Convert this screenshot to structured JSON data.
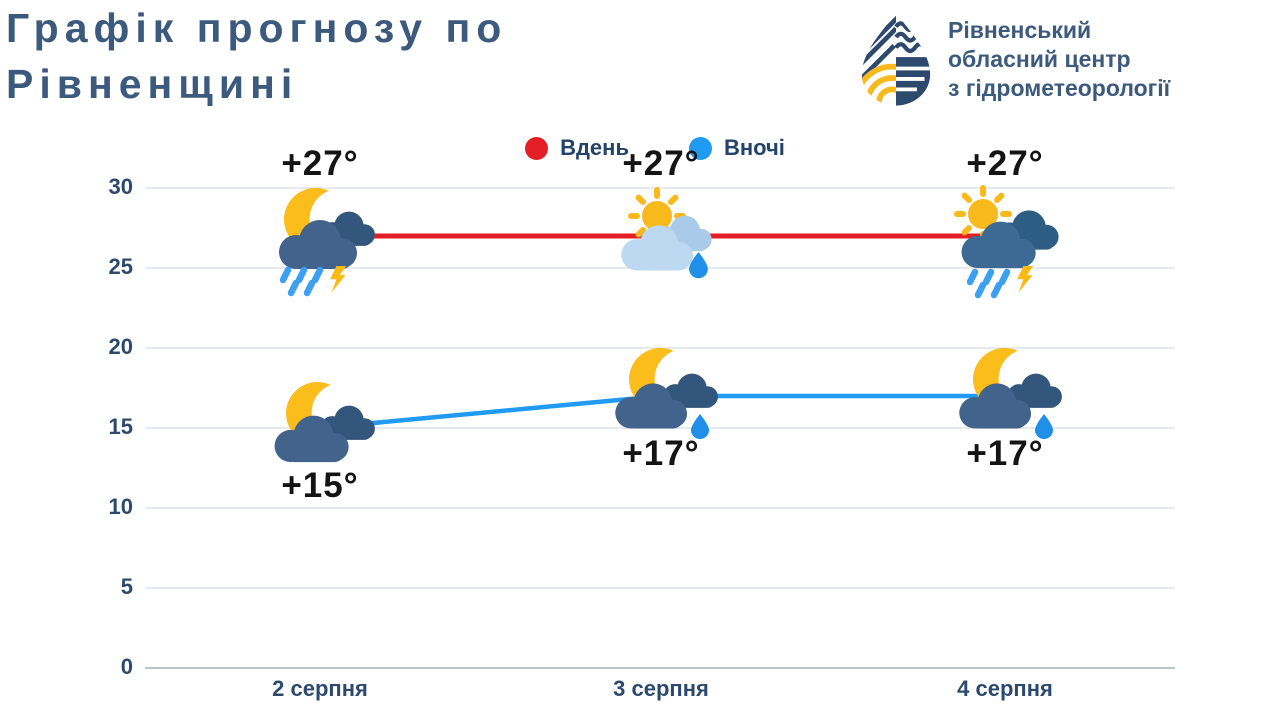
{
  "page": {
    "title_line1": "Графік прогнозу по",
    "title_line2": "Рівненщині"
  },
  "logo": {
    "name_line1": "Рівненський",
    "name_line2": "обласний центр",
    "name_line3": "з гідрометеорології",
    "icon": "water-drop-hydromet-logo",
    "color": "#3c5a7d",
    "accent": "#f8b91c"
  },
  "legend": {
    "day_label": "Вдень",
    "night_label": "Вночі",
    "day_color": "#e41e25",
    "night_color": "#219af2"
  },
  "chart_data": {
    "type": "line",
    "title": "Графік прогнозу по Рівненщині",
    "categories": [
      "2 серпня",
      "3 серпня",
      "4 серпня"
    ],
    "series": [
      {
        "name": "Вдень",
        "color": "#e41e25",
        "values": [
          27,
          27,
          27
        ],
        "labels": [
          "+27°",
          "+27°",
          "+27°"
        ],
        "icons": [
          "moon-cloud-rain-lightning",
          "sun-cloud-raindrop",
          "sun-cloud-rain-lightning"
        ]
      },
      {
        "name": "Вночі",
        "color": "#219af2",
        "values": [
          15,
          17,
          17
        ],
        "labels": [
          "+15°",
          "+17°",
          "+17°"
        ],
        "icons": [
          "moon-clouds",
          "moon-cloud-raindrop",
          "moon-cloud-raindrop"
        ]
      }
    ],
    "yticks": [
      0,
      5,
      10,
      15,
      20,
      25,
      30
    ],
    "ylim": [
      0,
      30
    ],
    "xlabel": "",
    "ylabel": "",
    "grid": true,
    "legend_position": "top-center"
  }
}
